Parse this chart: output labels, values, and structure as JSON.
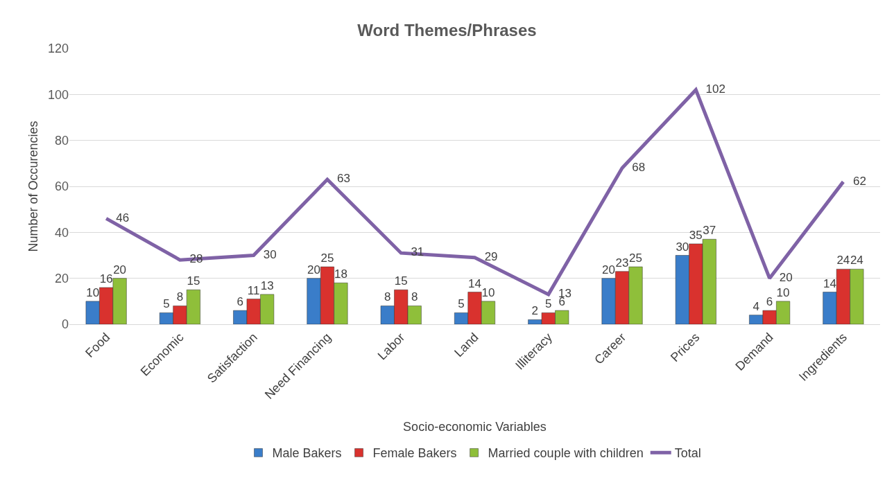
{
  "chart_data": {
    "type": "bar",
    "title": "Word Themes/Phrases",
    "xlabel": "Socio-economic Variables",
    "ylabel": "Number of Occurencies",
    "categories": [
      "Food",
      "Economic",
      "Satisfaction",
      "Need Financing",
      "Labor",
      "Land",
      "Illiteracy",
      "Career",
      "Prices",
      "Demand",
      "Ingredients"
    ],
    "series": [
      {
        "name": "Male Bakers",
        "color": "#3a7dc9",
        "values": [
          10,
          5,
          6,
          20,
          8,
          5,
          2,
          20,
          30,
          4,
          14
        ]
      },
      {
        "name": "Female Bakers",
        "color": "#d9322e",
        "values": [
          16,
          8,
          11,
          25,
          15,
          14,
          5,
          23,
          35,
          6,
          24
        ]
      },
      {
        "name": "Married couple with children",
        "color": "#8fbf3a",
        "values": [
          20,
          15,
          13,
          18,
          8,
          10,
          6,
          25,
          37,
          10,
          24
        ]
      },
      {
        "name": "Total",
        "type": "line",
        "color": "#7f62a6",
        "values": [
          46,
          28,
          30,
          63,
          31,
          29,
          13,
          68,
          102,
          20,
          62
        ]
      }
    ],
    "ylim": [
      0,
      120
    ],
    "yticks": [
      0,
      20,
      40,
      60,
      80,
      100,
      120
    ],
    "grid": "y",
    "legend": "bottom",
    "data_labels": true,
    "marker": "none",
    "line_style": "solid"
  }
}
